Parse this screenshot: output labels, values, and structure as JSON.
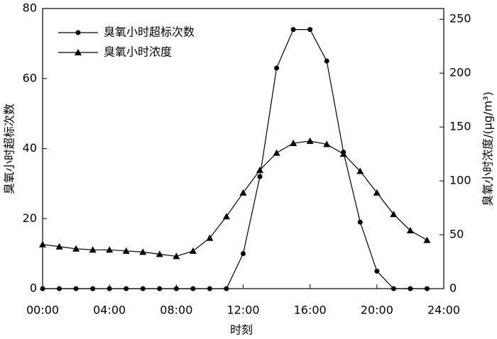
{
  "chart_data": {
    "type": "line",
    "x_label": "时刻",
    "y_label": "臭氧小时超标次数",
    "y2_label": "臭氧小时浓度/(μg/m³)",
    "x": [
      0,
      1,
      2,
      3,
      4,
      5,
      6,
      7,
      8,
      9,
      10,
      11,
      12,
      13,
      14,
      15,
      16,
      17,
      18,
      19,
      20,
      21,
      22,
      23
    ],
    "series": [
      {
        "name": "臭氧小时超标次数",
        "color": "#000000",
        "marker": "circle",
        "values": [
          0,
          0,
          0,
          0,
          0,
          0,
          0,
          0,
          0,
          0,
          0,
          0,
          10,
          32,
          63,
          74,
          74,
          65,
          39,
          19,
          5,
          0,
          0,
          0
        ]
      },
      {
        "name": "臭氧小时浓度",
        "color": "#000000",
        "marker": "triangle",
        "axis": "y2",
        "values": [
          41,
          39,
          37,
          36,
          36,
          35,
          34,
          32,
          30,
          35,
          47,
          67,
          89,
          110,
          126,
          135,
          137,
          134,
          125,
          109,
          89,
          69,
          54,
          45
        ]
      }
    ],
    "xlim": [
      0,
      24
    ],
    "xticks": [
      {
        "value": 0,
        "label": "00:00"
      },
      {
        "value": 4,
        "label": "04:00"
      },
      {
        "value": 8,
        "label": "08:00"
      },
      {
        "value": 12,
        "label": "12:00"
      },
      {
        "value": 16,
        "label": "16:00"
      },
      {
        "value": 20,
        "label": "20:00"
      },
      {
        "value": 24,
        "label": "24:00"
      }
    ],
    "ylim": [
      0,
      80
    ],
    "yticks": [
      0,
      20,
      40,
      60,
      80
    ],
    "y2lim": [
      0,
      260
    ],
    "y2ticks": [
      0,
      50,
      100,
      150,
      200,
      250
    ],
    "legend": "upper left"
  }
}
